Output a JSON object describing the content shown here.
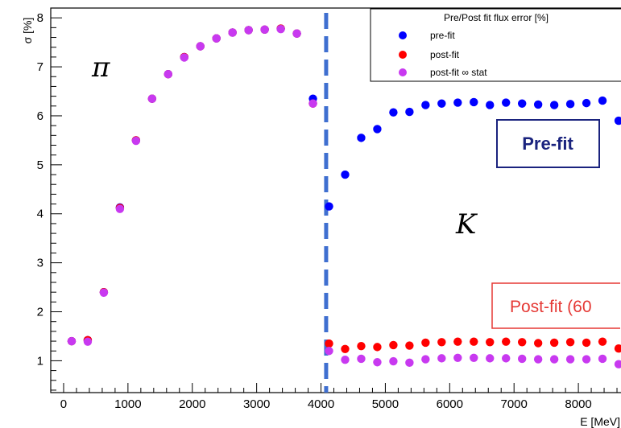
{
  "chart_data": {
    "type": "scatter",
    "xlabel": "E [MeV]",
    "ylabel": "σ [%]",
    "xlim": [
      -200,
      8750
    ],
    "ylim": [
      0.35,
      8.2
    ],
    "x_ticks": [
      0,
      1000,
      2000,
      3000,
      4000,
      5000,
      6000,
      7000,
      8000
    ],
    "y_ticks": [
      1,
      2,
      3,
      4,
      5,
      6,
      7,
      8
    ],
    "legend": {
      "title": "Pre/Post fit flux error [%]",
      "placement": "top-right"
    },
    "divider_x": 4080,
    "annotations": {
      "pi_label": "π",
      "k_label": "K",
      "prefit_box": "Pre-fit",
      "postfit_box": "Post-fit (60"
    },
    "series": [
      {
        "name": "pre-fit",
        "color": "#0000ff",
        "x": [
          125,
          375,
          625,
          875,
          1125,
          1375,
          1625,
          1875,
          2125,
          2375,
          2625,
          2875,
          3125,
          3375,
          3625,
          3875,
          4125,
          4375,
          4625,
          4875,
          5125,
          5375,
          5625,
          5875,
          6125,
          6375,
          6625,
          6875,
          7125,
          7375,
          7625,
          7875,
          8125,
          8375,
          8625
        ],
        "y": [
          1.4,
          1.42,
          2.4,
          4.13,
          5.5,
          6.35,
          6.85,
          7.2,
          7.42,
          7.58,
          7.7,
          7.75,
          7.76,
          7.78,
          7.68,
          6.35,
          4.15,
          4.8,
          5.55,
          5.73,
          6.07,
          6.08,
          6.22,
          6.25,
          6.27,
          6.28,
          6.22,
          6.27,
          6.25,
          6.23,
          6.22,
          6.24,
          6.26,
          6.31,
          5.9
        ]
      },
      {
        "name": "post-fit",
        "color": "#ff0000",
        "x": [
          125,
          375,
          625,
          875,
          1125,
          1375,
          1625,
          1875,
          2125,
          2375,
          2625,
          2875,
          3125,
          3375,
          3625,
          3875,
          4125,
          4375,
          4625,
          4875,
          5125,
          5375,
          5625,
          5875,
          6125,
          6375,
          6625,
          6875,
          7125,
          7375,
          7625,
          7875,
          8125,
          8375,
          8625
        ],
        "y": [
          1.4,
          1.42,
          2.4,
          4.12,
          5.5,
          6.35,
          6.85,
          7.2,
          7.42,
          7.58,
          7.7,
          7.75,
          7.76,
          7.78,
          7.68,
          6.25,
          1.35,
          1.24,
          1.3,
          1.28,
          1.32,
          1.31,
          1.37,
          1.38,
          1.39,
          1.39,
          1.38,
          1.39,
          1.38,
          1.36,
          1.37,
          1.38,
          1.37,
          1.39,
          1.25
        ]
      },
      {
        "name": "post-fit ∞ stat",
        "color": "#c839f0",
        "x": [
          125,
          375,
          625,
          875,
          1125,
          1375,
          1625,
          1875,
          2125,
          2375,
          2625,
          2875,
          3125,
          3375,
          3625,
          3875,
          4125,
          4375,
          4625,
          4875,
          5125,
          5375,
          5625,
          5875,
          6125,
          6375,
          6625,
          6875,
          7125,
          7375,
          7625,
          7875,
          8125,
          8375,
          8625
        ],
        "y": [
          1.4,
          1.39,
          2.39,
          4.1,
          5.49,
          6.35,
          6.85,
          7.19,
          7.42,
          7.58,
          7.7,
          7.75,
          7.76,
          7.77,
          7.68,
          6.25,
          1.2,
          1.02,
          1.04,
          0.97,
          0.99,
          0.96,
          1.03,
          1.05,
          1.06,
          1.06,
          1.05,
          1.05,
          1.04,
          1.03,
          1.03,
          1.03,
          1.03,
          1.04,
          0.93
        ]
      }
    ]
  },
  "colors": {
    "divider": "#3f6fd0",
    "prefit_box_border": "#1a237e",
    "postfit_box_border": "#e53935"
  }
}
